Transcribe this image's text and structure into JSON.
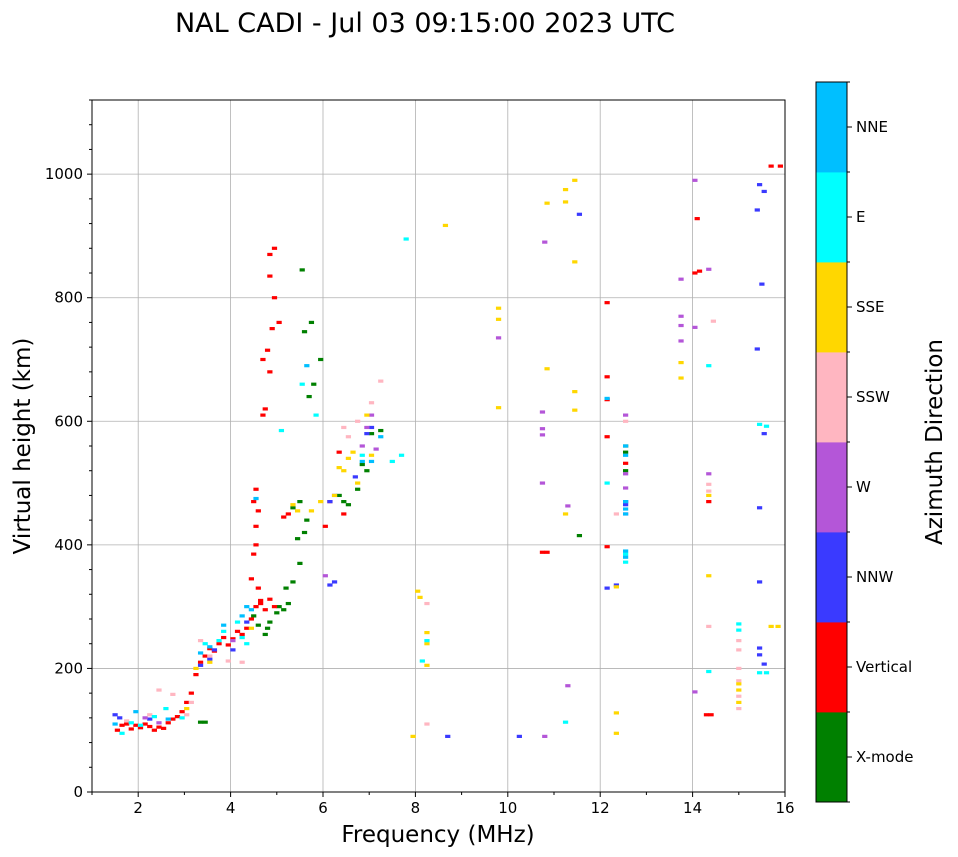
{
  "chart_data": {
    "type": "scatter",
    "title": "NAL CADI - Jul 03 09:15:00 2023 UTC",
    "xlabel": "Frequency (MHz)",
    "ylabel": "Virtual height (km)",
    "xlim": [
      1,
      16
    ],
    "ylim": [
      0,
      1120
    ],
    "xticks": [
      2,
      4,
      6,
      8,
      10,
      12,
      14,
      16
    ],
    "yticks": [
      0,
      200,
      400,
      600,
      800,
      1000
    ],
    "grid": true,
    "colorbar": {
      "label": "Azimuth Direction",
      "categories": [
        "X-mode",
        "Vertical",
        "NNW",
        "W",
        "SSW",
        "SSE",
        "E",
        "NNE"
      ],
      "colors": [
        "#008000",
        "#ff0000",
        "#3a3aff",
        "#b456d8",
        "#ffb6c1",
        "#ffd700",
        "#00ffff",
        "#00bfff"
      ]
    },
    "series": [
      {
        "name": "X-mode",
        "points": [
          [
            3.35,
            113
          ],
          [
            3.45,
            113
          ],
          [
            4.5,
            285
          ],
          [
            4.6,
            270
          ],
          [
            4.75,
            255
          ],
          [
            4.8,
            265
          ],
          [
            4.85,
            275
          ],
          [
            5.0,
            290
          ],
          [
            5.05,
            300
          ],
          [
            5.15,
            295
          ],
          [
            5.25,
            305
          ],
          [
            5.2,
            330
          ],
          [
            5.35,
            340
          ],
          [
            5.5,
            370
          ],
          [
            5.45,
            410
          ],
          [
            5.6,
            420
          ],
          [
            5.35,
            460
          ],
          [
            5.5,
            470
          ],
          [
            5.65,
            440
          ],
          [
            5.75,
            760
          ],
          [
            5.6,
            745
          ],
          [
            5.55,
            845
          ],
          [
            5.8,
            660
          ],
          [
            5.95,
            700
          ],
          [
            5.7,
            640
          ],
          [
            6.35,
            480
          ],
          [
            6.45,
            470
          ],
          [
            6.55,
            465
          ],
          [
            6.75,
            490
          ],
          [
            6.85,
            530
          ],
          [
            6.95,
            520
          ],
          [
            7.05,
            580
          ],
          [
            7.25,
            585
          ],
          [
            11.55,
            415
          ],
          [
            12.55,
            520
          ],
          [
            12.55,
            550
          ],
          [
            12.55,
            560
          ]
        ]
      },
      {
        "name": "Vertical",
        "points": [
          [
            1.55,
            100
          ],
          [
            1.65,
            108
          ],
          [
            1.75,
            110
          ],
          [
            1.85,
            102
          ],
          [
            1.95,
            108
          ],
          [
            2.05,
            104
          ],
          [
            2.15,
            110
          ],
          [
            2.25,
            106
          ],
          [
            2.35,
            100
          ],
          [
            2.45,
            105
          ],
          [
            2.55,
            103
          ],
          [
            2.65,
            112
          ],
          [
            2.75,
            118
          ],
          [
            2.85,
            122
          ],
          [
            2.95,
            130
          ],
          [
            3.05,
            145
          ],
          [
            3.15,
            160
          ],
          [
            3.25,
            190
          ],
          [
            3.35,
            210
          ],
          [
            3.45,
            220
          ],
          [
            3.55,
            232
          ],
          [
            3.65,
            228
          ],
          [
            3.75,
            240
          ],
          [
            3.85,
            250
          ],
          [
            3.95,
            238
          ],
          [
            4.05,
            248
          ],
          [
            4.15,
            260
          ],
          [
            4.25,
            255
          ],
          [
            4.35,
            265
          ],
          [
            4.45,
            280
          ],
          [
            4.55,
            300
          ],
          [
            4.65,
            310
          ],
          [
            4.75,
            295
          ],
          [
            4.85,
            312
          ],
          [
            4.95,
            300
          ],
          [
            4.45,
            345
          ],
          [
            4.5,
            385
          ],
          [
            4.55,
            400
          ],
          [
            4.6,
            330
          ],
          [
            4.65,
            305
          ],
          [
            4.55,
            430
          ],
          [
            4.5,
            470
          ],
          [
            4.55,
            490
          ],
          [
            4.6,
            455
          ],
          [
            4.7,
            610
          ],
          [
            4.75,
            620
          ],
          [
            4.7,
            700
          ],
          [
            4.8,
            715
          ],
          [
            4.85,
            680
          ],
          [
            4.9,
            750
          ],
          [
            4.95,
            800
          ],
          [
            4.85,
            870
          ],
          [
            4.95,
            880
          ],
          [
            4.85,
            835
          ],
          [
            5.05,
            760
          ],
          [
            5.15,
            445
          ],
          [
            5.25,
            450
          ],
          [
            6.05,
            430
          ],
          [
            6.15,
            470
          ],
          [
            6.35,
            550
          ],
          [
            6.45,
            450
          ],
          [
            10.75,
            388
          ],
          [
            10.85,
            388
          ],
          [
            12.15,
            792
          ],
          [
            12.15,
            672
          ],
          [
            12.15,
            635
          ],
          [
            12.15,
            575
          ],
          [
            12.15,
            397
          ],
          [
            12.55,
            532
          ],
          [
            14.1,
            928
          ],
          [
            14.05,
            840
          ],
          [
            14.15,
            843
          ],
          [
            14.35,
            470
          ],
          [
            14.3,
            125
          ],
          [
            14.4,
            125
          ],
          [
            15.7,
            1013
          ],
          [
            15.9,
            1013
          ]
        ]
      },
      {
        "name": "NNW",
        "points": [
          [
            1.5,
            125
          ],
          [
            1.6,
            120
          ],
          [
            2.25,
            118
          ],
          [
            3.35,
            205
          ],
          [
            3.55,
            215
          ],
          [
            3.65,
            230
          ],
          [
            4.05,
            230
          ],
          [
            4.35,
            275
          ],
          [
            6.15,
            335
          ],
          [
            6.25,
            340
          ],
          [
            6.15,
            470
          ],
          [
            6.25,
            480
          ],
          [
            6.7,
            510
          ],
          [
            6.95,
            580
          ],
          [
            7.05,
            590
          ],
          [
            11.55,
            935
          ],
          [
            12.15,
            330
          ],
          [
            12.35,
            335
          ],
          [
            12.55,
            465
          ],
          [
            12.55,
            470
          ],
          [
            8.7,
            90
          ],
          [
            10.25,
            90
          ],
          [
            15.45,
            983
          ],
          [
            15.55,
            972
          ],
          [
            15.4,
            942
          ],
          [
            15.5,
            822
          ],
          [
            15.4,
            717
          ],
          [
            15.55,
            580
          ],
          [
            15.45,
            460
          ],
          [
            15.45,
            340
          ],
          [
            15.45,
            233
          ],
          [
            15.45,
            222
          ],
          [
            15.55,
            207
          ]
        ]
      },
      {
        "name": "W",
        "points": [
          [
            2.15,
            120
          ],
          [
            2.45,
            112
          ],
          [
            4.05,
            245
          ],
          [
            6.05,
            350
          ],
          [
            6.85,
            560
          ],
          [
            6.95,
            590
          ],
          [
            7.05,
            610
          ],
          [
            7.15,
            555
          ],
          [
            9.8,
            735
          ],
          [
            10.8,
            890
          ],
          [
            10.75,
            615
          ],
          [
            10.75,
            588
          ],
          [
            10.75,
            578
          ],
          [
            10.75,
            500
          ],
          [
            11.3,
            463
          ],
          [
            11.3,
            172
          ],
          [
            10.8,
            90
          ],
          [
            12.55,
            610
          ],
          [
            12.55,
            492
          ],
          [
            12.55,
            450
          ],
          [
            12.55,
            515
          ],
          [
            13.75,
            770
          ],
          [
            13.75,
            755
          ],
          [
            13.75,
            730
          ],
          [
            14.05,
            990
          ],
          [
            14.05,
            752
          ],
          [
            14.05,
            162
          ],
          [
            14.35,
            846
          ],
          [
            14.35,
            515
          ],
          [
            13.75,
            830
          ]
        ]
      },
      {
        "name": "SSW",
        "points": [
          [
            1.75,
            115
          ],
          [
            2.25,
            125
          ],
          [
            2.45,
            165
          ],
          [
            2.75,
            158
          ],
          [
            3.05,
            125
          ],
          [
            3.15,
            145
          ],
          [
            3.35,
            245
          ],
          [
            3.55,
            220
          ],
          [
            3.95,
            212
          ],
          [
            4.25,
            210
          ],
          [
            6.45,
            590
          ],
          [
            6.55,
            575
          ],
          [
            6.75,
            600
          ],
          [
            7.05,
            630
          ],
          [
            7.25,
            665
          ],
          [
            8.25,
            305
          ],
          [
            8.25,
            110
          ],
          [
            12.35,
            450
          ],
          [
            12.55,
            600
          ],
          [
            14.35,
            498
          ],
          [
            14.35,
            487
          ],
          [
            14.35,
            268
          ],
          [
            14.45,
            762
          ],
          [
            15.0,
            135
          ],
          [
            15.0,
            155
          ],
          [
            15.0,
            180
          ],
          [
            15.0,
            200
          ],
          [
            15.0,
            230
          ],
          [
            15.0,
            245
          ]
        ]
      },
      {
        "name": "SSE",
        "points": [
          [
            3.05,
            135
          ],
          [
            3.25,
            200
          ],
          [
            3.55,
            210
          ],
          [
            4.45,
            265
          ],
          [
            5.35,
            465
          ],
          [
            5.45,
            455
          ],
          [
            5.75,
            455
          ],
          [
            5.95,
            470
          ],
          [
            6.25,
            480
          ],
          [
            6.35,
            525
          ],
          [
            6.45,
            520
          ],
          [
            6.55,
            540
          ],
          [
            6.65,
            550
          ],
          [
            6.75,
            500
          ],
          [
            6.95,
            610
          ],
          [
            7.05,
            545
          ],
          [
            8.05,
            325
          ],
          [
            8.1,
            315
          ],
          [
            8.25,
            258
          ],
          [
            8.25,
            240
          ],
          [
            8.25,
            205
          ],
          [
            8.65,
            917
          ],
          [
            7.95,
            90
          ],
          [
            9.8,
            783
          ],
          [
            9.8,
            765
          ],
          [
            9.8,
            622
          ],
          [
            10.85,
            953
          ],
          [
            10.85,
            685
          ],
          [
            11.25,
            975
          ],
          [
            11.25,
            955
          ],
          [
            11.45,
            990
          ],
          [
            11.45,
            858
          ],
          [
            11.45,
            648
          ],
          [
            11.45,
            618
          ],
          [
            11.25,
            450
          ],
          [
            12.35,
            128
          ],
          [
            12.35,
            95
          ],
          [
            12.35,
            332
          ],
          [
            13.75,
            695
          ],
          [
            13.75,
            670
          ],
          [
            14.35,
            350
          ],
          [
            14.35,
            480
          ],
          [
            15.0,
            145
          ],
          [
            15.0,
            165
          ],
          [
            15.0,
            175
          ],
          [
            15.7,
            268
          ],
          [
            15.85,
            268
          ]
        ]
      },
      {
        "name": "E",
        "points": [
          [
            1.65,
            95
          ],
          [
            1.85,
            112
          ],
          [
            2.05,
            108
          ],
          [
            2.35,
            122
          ],
          [
            2.6,
            135
          ],
          [
            2.95,
            120
          ],
          [
            3.45,
            240
          ],
          [
            3.75,
            245
          ],
          [
            3.85,
            260
          ],
          [
            4.15,
            275
          ],
          [
            4.25,
            250
          ],
          [
            4.35,
            240
          ],
          [
            5.1,
            585
          ],
          [
            5.55,
            660
          ],
          [
            5.85,
            610
          ],
          [
            6.85,
            545
          ],
          [
            7.5,
            535
          ],
          [
            7.7,
            545
          ],
          [
            7.8,
            895
          ],
          [
            8.25,
            245
          ],
          [
            8.15,
            212
          ],
          [
            11.25,
            113
          ],
          [
            12.15,
            500
          ],
          [
            12.55,
            385
          ],
          [
            12.55,
            372
          ],
          [
            14.35,
            690
          ],
          [
            14.35,
            195
          ],
          [
            15.0,
            262
          ],
          [
            15.0,
            272
          ],
          [
            15.6,
            193
          ],
          [
            15.45,
            193
          ],
          [
            15.6,
            592
          ],
          [
            15.45,
            595
          ]
        ]
      },
      {
        "name": "NNE",
        "points": [
          [
            1.5,
            110
          ],
          [
            1.95,
            130
          ],
          [
            2.65,
            118
          ],
          [
            3.35,
            225
          ],
          [
            3.55,
            235
          ],
          [
            3.85,
            270
          ],
          [
            4.25,
            285
          ],
          [
            4.35,
            300
          ],
          [
            4.45,
            295
          ],
          [
            4.55,
            475
          ],
          [
            5.65,
            690
          ],
          [
            6.85,
            535
          ],
          [
            7.05,
            535
          ],
          [
            7.25,
            575
          ],
          [
            12.55,
            380
          ],
          [
            12.55,
            390
          ],
          [
            12.55,
            470
          ],
          [
            12.55,
            458
          ],
          [
            12.55,
            450
          ],
          [
            12.55,
            545
          ],
          [
            12.55,
            560
          ],
          [
            12.15,
            637
          ]
        ]
      }
    ]
  }
}
